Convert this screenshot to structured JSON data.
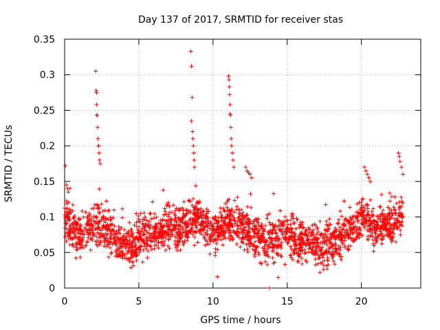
{
  "chart_data": {
    "type": "scatter",
    "title": "Day 137 of 2017, SRMTID for receiver stas",
    "xlabel": "GPS time / hours",
    "ylabel": "SRMTID / TECUs",
    "xlim": [
      0,
      24
    ],
    "ylim": [
      0,
      0.35
    ],
    "x_ticks": [
      "0",
      "5",
      "10",
      "15",
      "20"
    ],
    "y_ticks": [
      "0",
      "0.05",
      "0.1",
      "0.15",
      "0.2",
      "0.25",
      "0.3",
      "0.35"
    ],
    "grid": true,
    "marker": "+",
    "series": [
      {
        "name": "SRMTID",
        "color": "#ff0000",
        "baseline": {
          "x": [
            0,
            0.5,
            1,
            1.5,
            2,
            2.5,
            3,
            3.5,
            4,
            4.5,
            5,
            5.5,
            6,
            6.5,
            7,
            7.5,
            8,
            8.5,
            9,
            9.5,
            10,
            10.5,
            11,
            11.5,
            12,
            12.5,
            13,
            13.5,
            14,
            14.5,
            15,
            15.5,
            16,
            16.5,
            17,
            17.5,
            18,
            18.5,
            19,
            19.5,
            20,
            20.5,
            21,
            21.5,
            22,
            22.5,
            22.8
          ],
          "y": [
            0.095,
            0.085,
            0.075,
            0.08,
            0.09,
            0.085,
            0.075,
            0.07,
            0.06,
            0.055,
            0.07,
            0.08,
            0.075,
            0.08,
            0.085,
            0.08,
            0.085,
            0.095,
            0.1,
            0.085,
            0.075,
            0.085,
            0.095,
            0.09,
            0.085,
            0.075,
            0.07,
            0.065,
            0.07,
            0.075,
            0.075,
            0.07,
            0.065,
            0.065,
            0.06,
            0.06,
            0.065,
            0.07,
            0.075,
            0.085,
            0.1,
            0.09,
            0.08,
            0.085,
            0.09,
            0.1,
            0.11
          ]
        },
        "spread": 0.02,
        "count": 2300,
        "peaks": [
          {
            "x": [
              0.05,
              0.12,
              0.2,
              0.25
            ],
            "y": [
              0.172,
              0.145,
              0.14,
              0.135
            ]
          },
          {
            "x": [
              2.1,
              2.12,
              2.15,
              2.15,
              2.17,
              2.2,
              2.22,
              2.25,
              2.28,
              2.3,
              2.32,
              2.35,
              2.4
            ],
            "y": [
              0.305,
              0.278,
              0.275,
              0.258,
              0.243,
              0.243,
              0.226,
              0.21,
              0.2,
              0.2,
              0.19,
              0.18,
              0.175
            ]
          },
          {
            "x": [
              8.5,
              8.55,
              8.6,
              8.55,
              8.62,
              8.65,
              8.68,
              8.7,
              8.72,
              8.75
            ],
            "y": [
              0.333,
              0.312,
              0.268,
              0.235,
              0.22,
              0.21,
              0.2,
              0.19,
              0.18,
              0.17
            ]
          },
          {
            "x": [
              11.05,
              11.08,
              11.1,
              11.12,
              11.15,
              11.15,
              11.18,
              11.2,
              11.22,
              11.25,
              11.3,
              11.35,
              11.4
            ],
            "y": [
              0.298,
              0.293,
              0.283,
              0.272,
              0.258,
              0.245,
              0.243,
              0.226,
              0.21,
              0.2,
              0.19,
              0.18,
              0.17
            ]
          },
          {
            "x": [
              12.2,
              12.3,
              12.4,
              12.5,
              12.6
            ],
            "y": [
              0.17,
              0.165,
              0.162,
              0.16,
              0.155
            ]
          },
          {
            "x": [
              20.2,
              20.3,
              20.4,
              20.5,
              20.6
            ],
            "y": [
              0.17,
              0.165,
              0.16,
              0.155,
              0.15
            ]
          },
          {
            "x": [
              22.5,
              22.55,
              22.6,
              22.7,
              22.8
            ],
            "y": [
              0.19,
              0.185,
              0.178,
              0.17,
              0.16
            ]
          },
          {
            "x": [
              13.8
            ],
            "y": [
              0.0
            ]
          },
          {
            "x": [
              10.3,
              14.4
            ],
            "y": [
              0.016,
              0.015
            ]
          }
        ]
      }
    ]
  }
}
